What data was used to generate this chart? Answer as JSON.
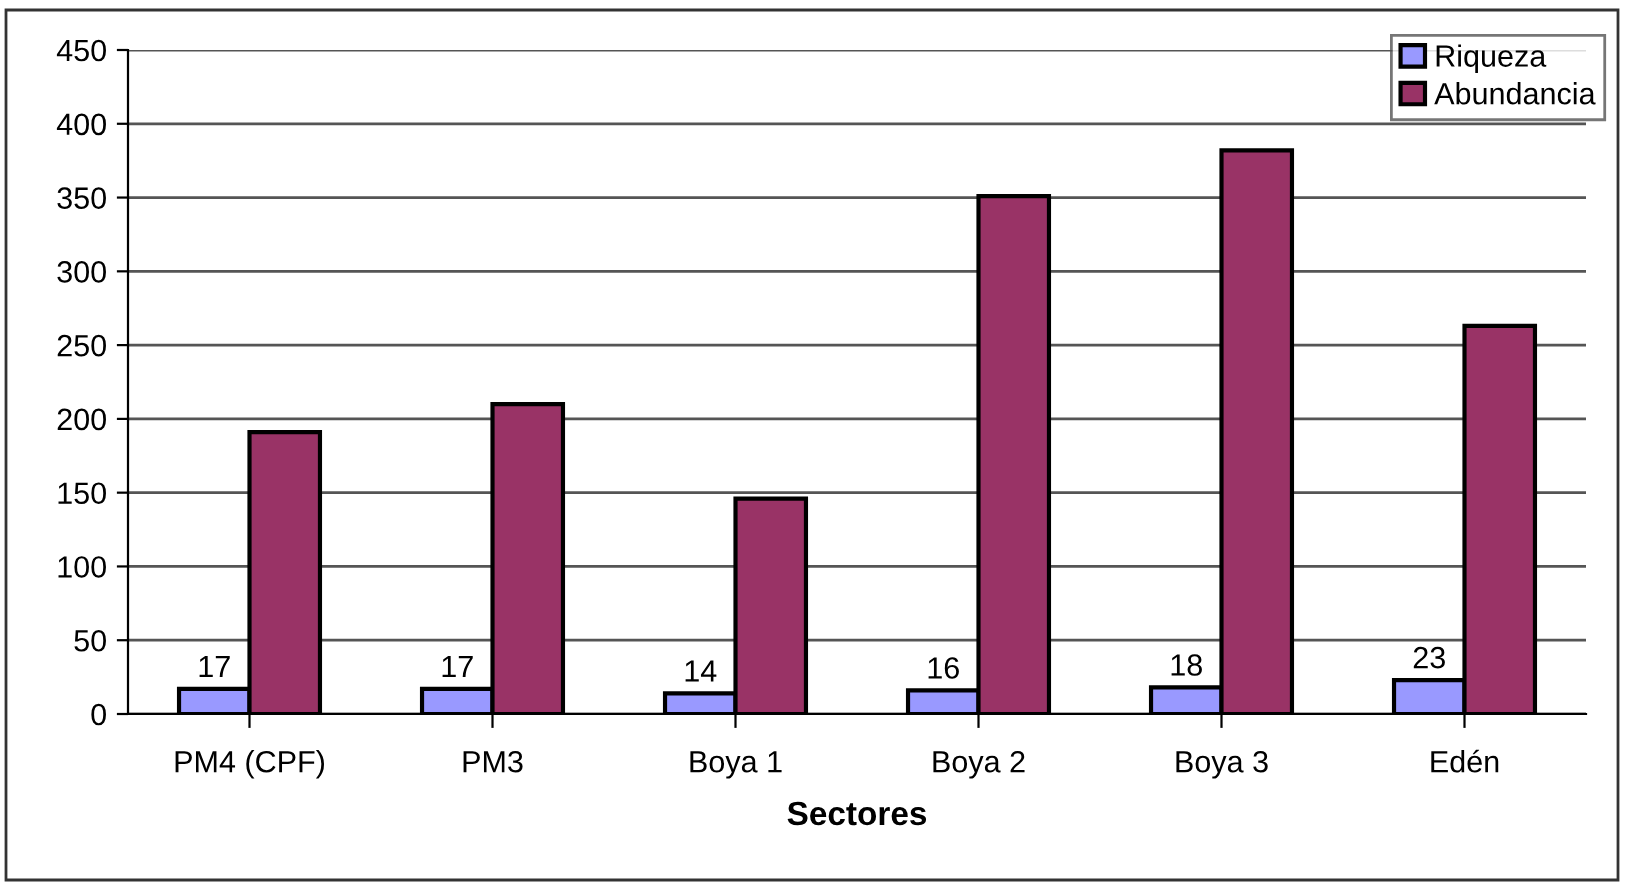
{
  "chart_data": {
    "type": "bar",
    "xlabel": "Sectores",
    "categories": [
      "PM4 (CPF)",
      "PM3",
      "Boya 1",
      "Boya 2",
      "Boya 3",
      "Edén"
    ],
    "series": [
      {
        "name": "Riqueza",
        "color": "#9999ff",
        "values": [
          17,
          17,
          14,
          16,
          18,
          23
        ],
        "value_labels": [
          "17",
          "17",
          "14",
          "16",
          "18",
          "23"
        ]
      },
      {
        "name": "Abundancia",
        "color": "#993366",
        "values": [
          191,
          210,
          146,
          351,
          382,
          263
        ]
      }
    ],
    "ylim": [
      0,
      450
    ],
    "yticks": [
      0,
      50,
      100,
      150,
      200,
      250,
      300,
      350,
      400,
      450
    ],
    "grid": "y",
    "legend": "top right"
  }
}
